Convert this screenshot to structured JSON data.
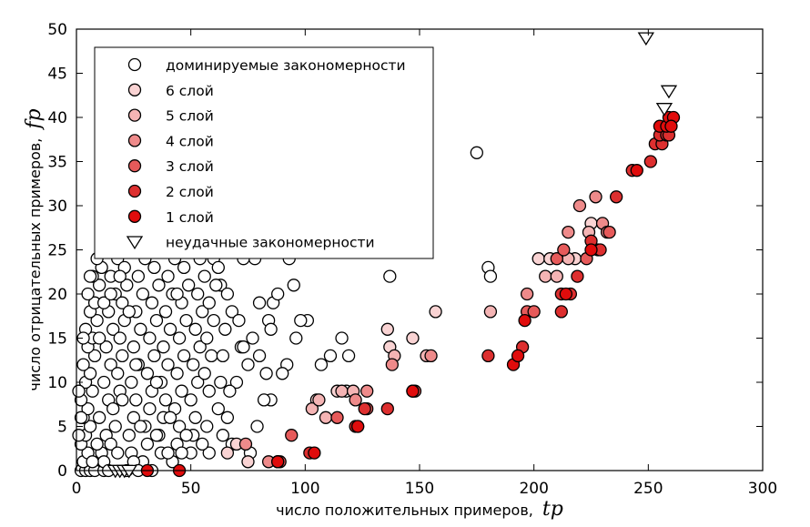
{
  "chart_data": {
    "type": "scatter",
    "xlabel": "число положительных примеров,",
    "xlabel_symbol": "tp",
    "ylabel": "число отрицательных примеров,",
    "ylabel_symbol": "fp",
    "xlim": [
      0,
      300
    ],
    "ylim": [
      0,
      50
    ],
    "xticks": [
      0,
      50,
      100,
      150,
      200,
      250,
      300
    ],
    "yticks": [
      0,
      5,
      10,
      15,
      20,
      25,
      30,
      35,
      40,
      45,
      50
    ],
    "grid": false,
    "legend_position": "top-left",
    "series": [
      {
        "name": "доминируемые закономерности",
        "marker": "circle",
        "color": "#ffffff",
        "points": [
          [
            175,
            36
          ],
          [
            137,
            22
          ],
          [
            180,
            23
          ],
          [
            181,
            22
          ],
          [
            116,
            15
          ],
          [
            119,
            13
          ],
          [
            111,
            13
          ],
          [
            107,
            12
          ],
          [
            118,
            9
          ],
          [
            101,
            17
          ],
          [
            98,
            17
          ],
          [
            96,
            15
          ],
          [
            92,
            12
          ],
          [
            90,
            11
          ],
          [
            78,
            24
          ],
          [
            73,
            24
          ],
          [
            93,
            24
          ],
          [
            95,
            21
          ],
          [
            86,
            19
          ],
          [
            80,
            19
          ],
          [
            88,
            20
          ],
          [
            84,
            17
          ],
          [
            85,
            16
          ],
          [
            77,
            15
          ],
          [
            72,
            14
          ],
          [
            75,
            12
          ],
          [
            70,
            10
          ],
          [
            60,
            24
          ],
          [
            63,
            21
          ],
          [
            66,
            20
          ],
          [
            68,
            18
          ],
          [
            71,
            17
          ],
          [
            73,
            14
          ],
          [
            80,
            13
          ],
          [
            83,
            11
          ],
          [
            85,
            8
          ],
          [
            82,
            8
          ],
          [
            79,
            5
          ],
          [
            76,
            2
          ],
          [
            68,
            3
          ],
          [
            64,
            4
          ],
          [
            58,
            2
          ],
          [
            2,
            0
          ],
          [
            4,
            0
          ],
          [
            6,
            0
          ],
          [
            8,
            0
          ],
          [
            12,
            0
          ],
          [
            3,
            1
          ],
          [
            5,
            2
          ],
          [
            2,
            3
          ],
          [
            4,
            4
          ],
          [
            6,
            5
          ],
          [
            3,
            6
          ],
          [
            5,
            7
          ],
          [
            2,
            8
          ],
          [
            7,
            9
          ],
          [
            4,
            10
          ],
          [
            6,
            11
          ],
          [
            3,
            12
          ],
          [
            8,
            13
          ],
          [
            5,
            14
          ],
          [
            7,
            15
          ],
          [
            4,
            16
          ],
          [
            9,
            17
          ],
          [
            6,
            18
          ],
          [
            8,
            19
          ],
          [
            5,
            20
          ],
          [
            10,
            21
          ],
          [
            7,
            22
          ],
          [
            11,
            23
          ],
          [
            9,
            24
          ],
          [
            11,
            2
          ],
          [
            13,
            4
          ],
          [
            10,
            6
          ],
          [
            14,
            8
          ],
          [
            12,
            10
          ],
          [
            15,
            12
          ],
          [
            13,
            14
          ],
          [
            16,
            16
          ],
          [
            14,
            18
          ],
          [
            17,
            20
          ],
          [
            15,
            22
          ],
          [
            18,
            24
          ],
          [
            12,
            1
          ],
          [
            15,
            3
          ],
          [
            17,
            5
          ],
          [
            16,
            7
          ],
          [
            19,
            9
          ],
          [
            18,
            11
          ],
          [
            20,
            13
          ],
          [
            19,
            15
          ],
          [
            21,
            17
          ],
          [
            20,
            19
          ],
          [
            22,
            21
          ],
          [
            21,
            23
          ],
          [
            24,
            2
          ],
          [
            23,
            4
          ],
          [
            25,
            6
          ],
          [
            26,
            8
          ],
          [
            24,
            10
          ],
          [
            27,
            12
          ],
          [
            25,
            14
          ],
          [
            28,
            16
          ],
          [
            26,
            18
          ],
          [
            29,
            20
          ],
          [
            27,
            22
          ],
          [
            30,
            24
          ],
          [
            29,
            1
          ],
          [
            31,
            3
          ],
          [
            30,
            5
          ],
          [
            32,
            7
          ],
          [
            33,
            9
          ],
          [
            31,
            11
          ],
          [
            34,
            13
          ],
          [
            32,
            15
          ],
          [
            35,
            17
          ],
          [
            33,
            19
          ],
          [
            36,
            21
          ],
          [
            34,
            23
          ],
          [
            37,
            2
          ],
          [
            36,
            4
          ],
          [
            38,
            6
          ],
          [
            39,
            8
          ],
          [
            37,
            10
          ],
          [
            40,
            12
          ],
          [
            38,
            14
          ],
          [
            41,
            16
          ],
          [
            39,
            18
          ],
          [
            42,
            20
          ],
          [
            40,
            22
          ],
          [
            43,
            24
          ],
          [
            42,
            1
          ],
          [
            44,
            3
          ],
          [
            45,
            5
          ],
          [
            43,
            7
          ],
          [
            46,
            9
          ],
          [
            44,
            11
          ],
          [
            47,
            13
          ],
          [
            45,
            15
          ],
          [
            48,
            17
          ],
          [
            46,
            19
          ],
          [
            49,
            21
          ],
          [
            47,
            23
          ],
          [
            50,
            2
          ],
          [
            51,
            4
          ],
          [
            52,
            6
          ],
          [
            50,
            8
          ],
          [
            53,
            10
          ],
          [
            51,
            12
          ],
          [
            54,
            14
          ],
          [
            52,
            16
          ],
          [
            55,
            18
          ],
          [
            53,
            20
          ],
          [
            56,
            22
          ],
          [
            54,
            24
          ],
          [
            57,
            5
          ],
          [
            58,
            9
          ],
          [
            56,
            11
          ],
          [
            59,
            13
          ],
          [
            57,
            15
          ],
          [
            60,
            17
          ],
          [
            58,
            19
          ],
          [
            61,
            21
          ],
          [
            62,
            7
          ],
          [
            63,
            10
          ],
          [
            64,
            13
          ],
          [
            65,
            16
          ],
          [
            66,
            6
          ],
          [
            67,
            9
          ],
          [
            62,
            23
          ],
          [
            1,
            4
          ],
          [
            2,
            6
          ],
          [
            1,
            9
          ],
          [
            9,
            3
          ],
          [
            10,
            15
          ],
          [
            20,
            8
          ],
          [
            23,
            18
          ],
          [
            28,
            5
          ],
          [
            35,
            10
          ],
          [
            41,
            6
          ],
          [
            48,
            4
          ],
          [
            55,
            3
          ],
          [
            18,
            2
          ],
          [
            7,
            1
          ],
          [
            14,
            0
          ],
          [
            22,
            0
          ],
          [
            25,
            1
          ],
          [
            33,
            0
          ],
          [
            44,
            20
          ],
          [
            3,
            15
          ],
          [
            6,
            22
          ],
          [
            12,
            19
          ],
          [
            19,
            22
          ],
          [
            26,
            12
          ],
          [
            35,
            4
          ],
          [
            40,
            2
          ],
          [
            46,
            2
          ],
          [
            27,
            0
          ],
          [
            15,
            20
          ]
        ]
      },
      {
        "name": "6 слой",
        "marker": "circle",
        "color": "#f9d3d3",
        "points": [
          [
            136,
            16
          ],
          [
            137,
            14
          ],
          [
            147,
            15
          ],
          [
            157,
            18
          ],
          [
            202,
            24
          ],
          [
            207,
            24
          ],
          [
            218,
            24
          ],
          [
            225,
            28
          ],
          [
            114,
            9
          ],
          [
            105,
            8
          ],
          [
            66,
            2
          ],
          [
            70,
            3
          ],
          [
            75,
            1
          ]
        ]
      },
      {
        "name": "5 слой",
        "marker": "circle",
        "color": "#f4b4b4",
        "points": [
          [
            181,
            18
          ],
          [
            205,
            22
          ],
          [
            210,
            22
          ],
          [
            215,
            24
          ],
          [
            224,
            27
          ],
          [
            109,
            6
          ],
          [
            103,
            7
          ],
          [
            106,
            8
          ],
          [
            116,
            9
          ],
          [
            121,
            9
          ],
          [
            139,
            13
          ],
          [
            153,
            13
          ],
          [
            88,
            1
          ]
        ]
      },
      {
        "name": "4 слой",
        "marker": "circle",
        "color": "#ee8a8a",
        "points": [
          [
            197,
            20
          ],
          [
            215,
            27
          ],
          [
            220,
            30
          ],
          [
            227,
            31
          ],
          [
            230,
            28
          ],
          [
            232,
            27
          ],
          [
            127,
            9
          ],
          [
            122,
            8
          ],
          [
            138,
            12
          ],
          [
            155,
            13
          ],
          [
            74,
            3
          ],
          [
            84,
            1
          ]
        ]
      },
      {
        "name": "3 слой",
        "marker": "circle",
        "color": "#e65a5a",
        "points": [
          [
            197,
            18
          ],
          [
            210,
            24
          ],
          [
            213,
            25
          ],
          [
            223,
            24
          ],
          [
            228,
            25
          ],
          [
            233,
            27
          ],
          [
            200,
            18
          ],
          [
            114,
            6
          ],
          [
            127,
            7
          ],
          [
            148,
            9
          ],
          [
            94,
            4
          ],
          [
            89,
            1
          ]
        ]
      },
      {
        "name": "2 слой",
        "marker": "circle",
        "color": "#dd2f2f",
        "points": [
          [
            236,
            31
          ],
          [
            243,
            34
          ],
          [
            251,
            35
          ],
          [
            253,
            37
          ],
          [
            256,
            37
          ],
          [
            255,
            38
          ],
          [
            258,
            38
          ],
          [
            258,
            39
          ],
          [
            259,
            38
          ],
          [
            180,
            13
          ],
          [
            195,
            14
          ],
          [
            212,
            18
          ],
          [
            216,
            20
          ],
          [
            219,
            22
          ],
          [
            225,
            26
          ],
          [
            229,
            25
          ],
          [
            212,
            20
          ],
          [
            122,
            5
          ],
          [
            136,
            7
          ],
          [
            147,
            9
          ],
          [
            126,
            7
          ],
          [
            102,
            2
          ],
          [
            88,
            1
          ]
        ]
      },
      {
        "name": "1 слой",
        "marker": "circle",
        "color": "#e00c0c",
        "points": [
          [
            255,
            39
          ],
          [
            258,
            39
          ],
          [
            259,
            40
          ],
          [
            261,
            40
          ],
          [
            260,
            39
          ],
          [
            191,
            12
          ],
          [
            193,
            13
          ],
          [
            196,
            17
          ],
          [
            214,
            20
          ],
          [
            225,
            25
          ],
          [
            245,
            34
          ],
          [
            31,
            0
          ],
          [
            45,
            0
          ],
          [
            104,
            2
          ],
          [
            123,
            5
          ],
          [
            123,
            5
          ],
          [
            147,
            9
          ],
          [
            88,
            1
          ]
        ]
      },
      {
        "name": "неудачные закономерности",
        "marker": "triangle-down",
        "color": "#ffffff",
        "points": [
          [
            249,
            49
          ],
          [
            259,
            43
          ],
          [
            257,
            41
          ],
          [
            17,
            0
          ],
          [
            19,
            0
          ],
          [
            21,
            0
          ],
          [
            23,
            0
          ]
        ]
      }
    ]
  }
}
